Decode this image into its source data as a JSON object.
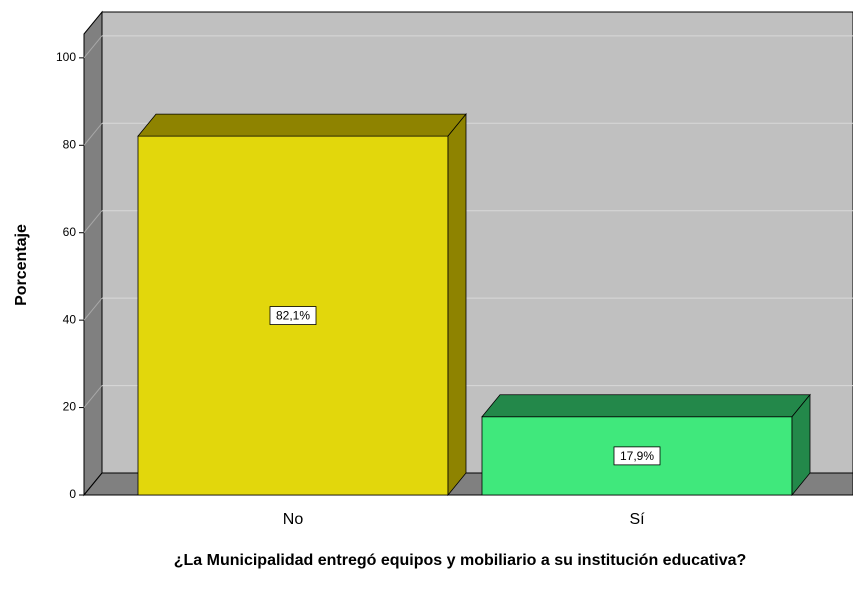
{
  "chart_data": {
    "type": "bar3d",
    "categories": [
      "No",
      "Sí"
    ],
    "values": [
      82.1,
      17.9
    ],
    "value_labels": [
      "82,1%",
      "17,9%"
    ],
    "colors": [
      "#e2d70c",
      "#40e87c"
    ],
    "side_colors": [
      "#8e8300",
      "#23884a"
    ],
    "ylabel": "Porcentaje",
    "xlabel": "¿La Municipalidad entregó equipos y mobiliario a su institución educativa?",
    "ylim": [
      0,
      105
    ],
    "yticks": [
      0,
      20,
      40,
      60,
      80,
      100
    ],
    "grid": true
  }
}
